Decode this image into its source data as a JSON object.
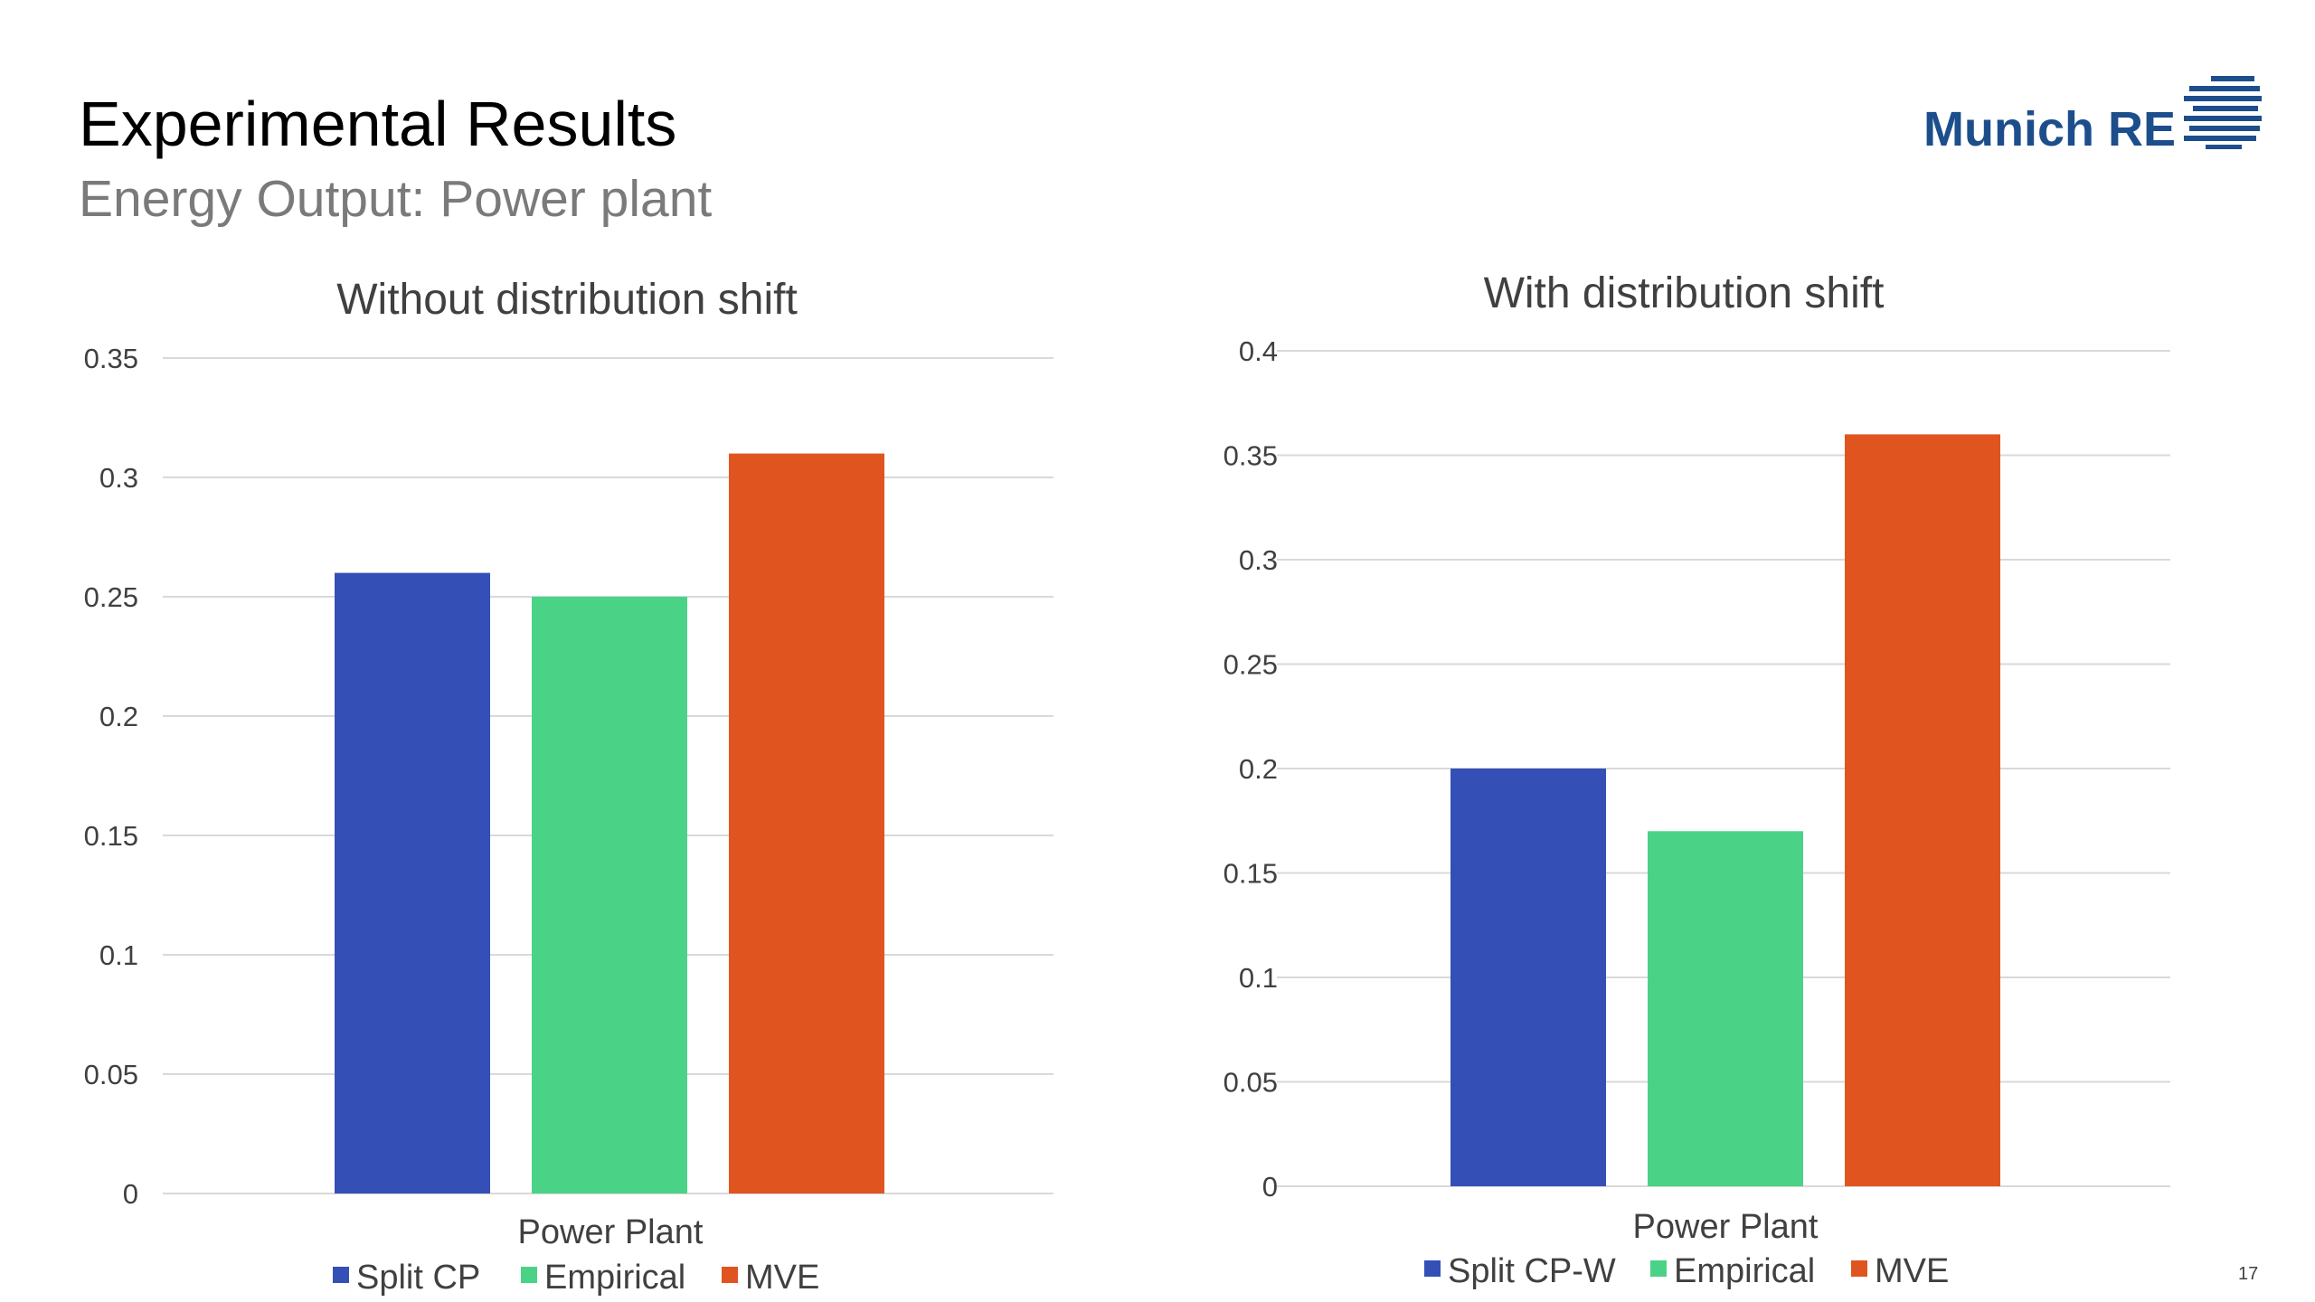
{
  "slide": {
    "title": "Experimental Results",
    "subtitle": "Energy Output: Power plant",
    "logo_text": "Munich RE",
    "page_number": "17"
  },
  "colors": {
    "split_cp": "#3450b7",
    "empirical": "#4ad386",
    "mve": "#e0541f",
    "logo": "#1d4e8c",
    "grid": "#d9d9d9",
    "axis_text": "#404040"
  },
  "chart_data": [
    {
      "type": "bar",
      "title": "Without distribution shift",
      "categories": [
        "Power Plant"
      ],
      "xlabel": "Power Plant",
      "ylabel": "",
      "ylim": [
        0,
        0.35
      ],
      "yticks": [
        "0",
        "0.05",
        "0.1",
        "0.15",
        "0.2",
        "0.25",
        "0.3",
        "0.35"
      ],
      "grid": true,
      "legend_position": "bottom",
      "series": [
        {
          "name": "Split CP",
          "values": [
            0.26
          ],
          "color": "#3450b7"
        },
        {
          "name": "Empirical",
          "values": [
            0.25
          ],
          "color": "#4ad386"
        },
        {
          "name": "MVE",
          "values": [
            0.31
          ],
          "color": "#e0541f"
        }
      ]
    },
    {
      "type": "bar",
      "title": "With distribution shift",
      "categories": [
        "Power Plant"
      ],
      "xlabel": "Power Plant",
      "ylabel": "",
      "ylim": [
        0,
        0.4
      ],
      "yticks": [
        "0",
        "0.05",
        "0.1",
        "0.15",
        "0.2",
        "0.25",
        "0.3",
        "0.35",
        "0.4"
      ],
      "grid": true,
      "legend_position": "bottom",
      "series": [
        {
          "name": "Split CP-W",
          "values": [
            0.2
          ],
          "color": "#3450b7"
        },
        {
          "name": "Empirical",
          "values": [
            0.17
          ],
          "color": "#4ad386"
        },
        {
          "name": "MVE",
          "values": [
            0.36
          ],
          "color": "#e0541f"
        }
      ]
    }
  ]
}
